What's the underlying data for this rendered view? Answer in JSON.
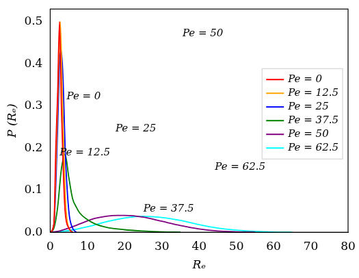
{
  "chart_data": {
    "type": "line",
    "x_label": "Rₑ",
    "y_label": "P (Rₑ)",
    "xlim": [
      0,
      80
    ],
    "xticks": [
      0,
      10,
      20,
      30,
      40,
      50,
      60,
      70,
      80
    ],
    "ylim": [
      0,
      0.53
    ],
    "yticks": [
      {
        "value": 0,
        "label": "0.0"
      },
      0.1,
      0.2,
      0.3,
      0.4,
      0.5
    ],
    "grid": false,
    "legend": "right",
    "annotations": [
      "Pe = 0",
      "Pe = 12.5",
      "Pe = 25",
      "Pe = 37.5",
      "Pe = 50",
      "Pe = 62.5"
    ],
    "series": [
      {
        "name": "Pe = 0",
        "color": "#ff0000",
        "x": [
          0,
          1,
          1.5,
          2,
          2.5,
          3,
          3.5,
          4,
          5,
          6
        ],
        "values": [
          0,
          0.02,
          0.2,
          0.33,
          0.5,
          0.3,
          0.15,
          0.05,
          0.01,
          0
        ]
      },
      {
        "name": "Pe = 12.5",
        "color": "#ffa500",
        "x": [
          0,
          1,
          1.5,
          2,
          2.7,
          3.2,
          3.7,
          4.2,
          5,
          6
        ],
        "values": [
          0,
          0.02,
          0.15,
          0.3,
          0.5,
          0.35,
          0.18,
          0.06,
          0.01,
          0
        ]
      },
      {
        "name": "Pe = 25",
        "color": "#0000ff",
        "x": [
          0,
          1,
          2,
          2.5,
          3,
          3.5,
          4,
          5,
          6,
          7
        ],
        "values": [
          0,
          0.02,
          0.25,
          0.4,
          0.43,
          0.35,
          0.2,
          0.05,
          0.01,
          0
        ]
      },
      {
        "name": "Pe = 37.5",
        "color": "#008000",
        "x": [
          0,
          1,
          2,
          3,
          4,
          5,
          6,
          7,
          8,
          10,
          12,
          15,
          20,
          25,
          30,
          35
        ],
        "values": [
          0,
          0.01,
          0.06,
          0.15,
          0.185,
          0.13,
          0.08,
          0.06,
          0.045,
          0.03,
          0.02,
          0.012,
          0.006,
          0.003,
          0.001,
          0
        ]
      },
      {
        "name": "Pe = 50",
        "color": "#800080",
        "x": [
          0,
          2,
          5,
          8,
          10,
          12,
          15,
          18,
          20,
          25,
          30,
          35,
          40,
          45,
          50,
          55
        ],
        "values": [
          0,
          0.002,
          0.01,
          0.02,
          0.027,
          0.033,
          0.038,
          0.04,
          0.04,
          0.036,
          0.026,
          0.016,
          0.008,
          0.003,
          0.001,
          0
        ]
      },
      {
        "name": "Pe = 62.5",
        "color": "#00ffff",
        "x": [
          0,
          5,
          10,
          15,
          20,
          25,
          30,
          35,
          40,
          45,
          50,
          55,
          60,
          65
        ],
        "values": [
          0,
          0.004,
          0.013,
          0.025,
          0.034,
          0.038,
          0.035,
          0.028,
          0.018,
          0.01,
          0.005,
          0.002,
          0.0005,
          0
        ]
      }
    ]
  }
}
